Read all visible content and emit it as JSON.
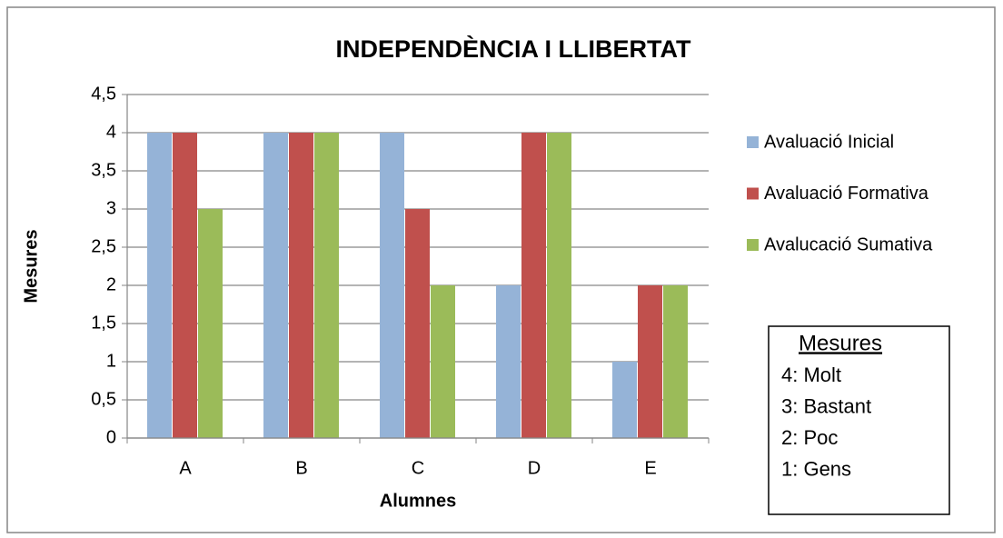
{
  "chart_data": {
    "type": "bar",
    "title": "INDEPENDÈNCIA I LLIBERTAT",
    "xlabel": "Alumnes",
    "ylabel": "Mesures",
    "categories": [
      "A",
      "B",
      "C",
      "D",
      "E"
    ],
    "series": [
      {
        "name": "Avaluació Inicial",
        "color": "#95b3d7",
        "values": [
          4,
          4,
          4,
          2,
          1
        ]
      },
      {
        "name": "Avaluació Formativa",
        "color": "#c0504d",
        "values": [
          4,
          4,
          3,
          4,
          2
        ]
      },
      {
        "name": "Avalucació Sumativa",
        "color": "#9bbb59",
        "values": [
          3,
          4,
          2,
          4,
          2
        ]
      }
    ],
    "ylim": [
      0,
      4.5
    ],
    "yticks": [
      0,
      {
        "value": 0.5,
        "label": "0,5"
      },
      1,
      {
        "value": 1.5,
        "label": "1,5"
      },
      2,
      {
        "value": 2.5,
        "label": "2,5"
      },
      3,
      {
        "value": 3.5,
        "label": "3,5"
      },
      4,
      {
        "value": 4.5,
        "label": "4,5"
      }
    ],
    "grid": true,
    "legend": "right",
    "annotation": {
      "title": "Mesures",
      "lines": [
        "4: Molt",
        "3: Bastant",
        "2: Poc",
        "1: Gens"
      ]
    }
  }
}
